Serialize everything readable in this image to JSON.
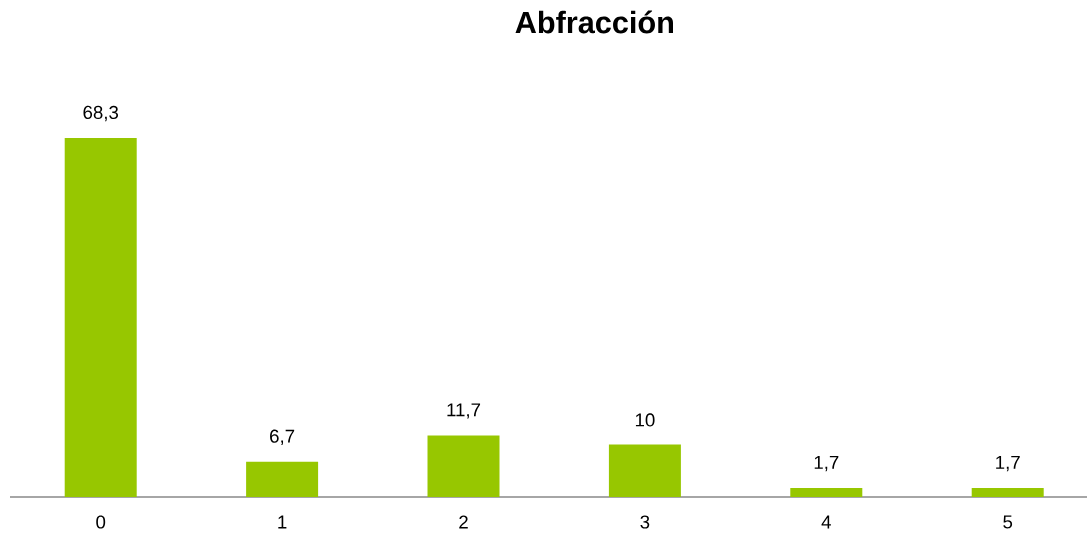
{
  "chart_data": {
    "type": "bar",
    "title": "Abfracción",
    "categories": [
      "0",
      "1",
      "2",
      "3",
      "4",
      "5"
    ],
    "values": [
      68.3,
      6.7,
      11.7,
      10,
      1.7,
      1.7
    ],
    "value_labels": [
      "68,3",
      "6,7",
      "11,7",
      "10",
      "1,7",
      "1,7"
    ],
    "color": "#97c700",
    "tick_labels": "x"
  }
}
